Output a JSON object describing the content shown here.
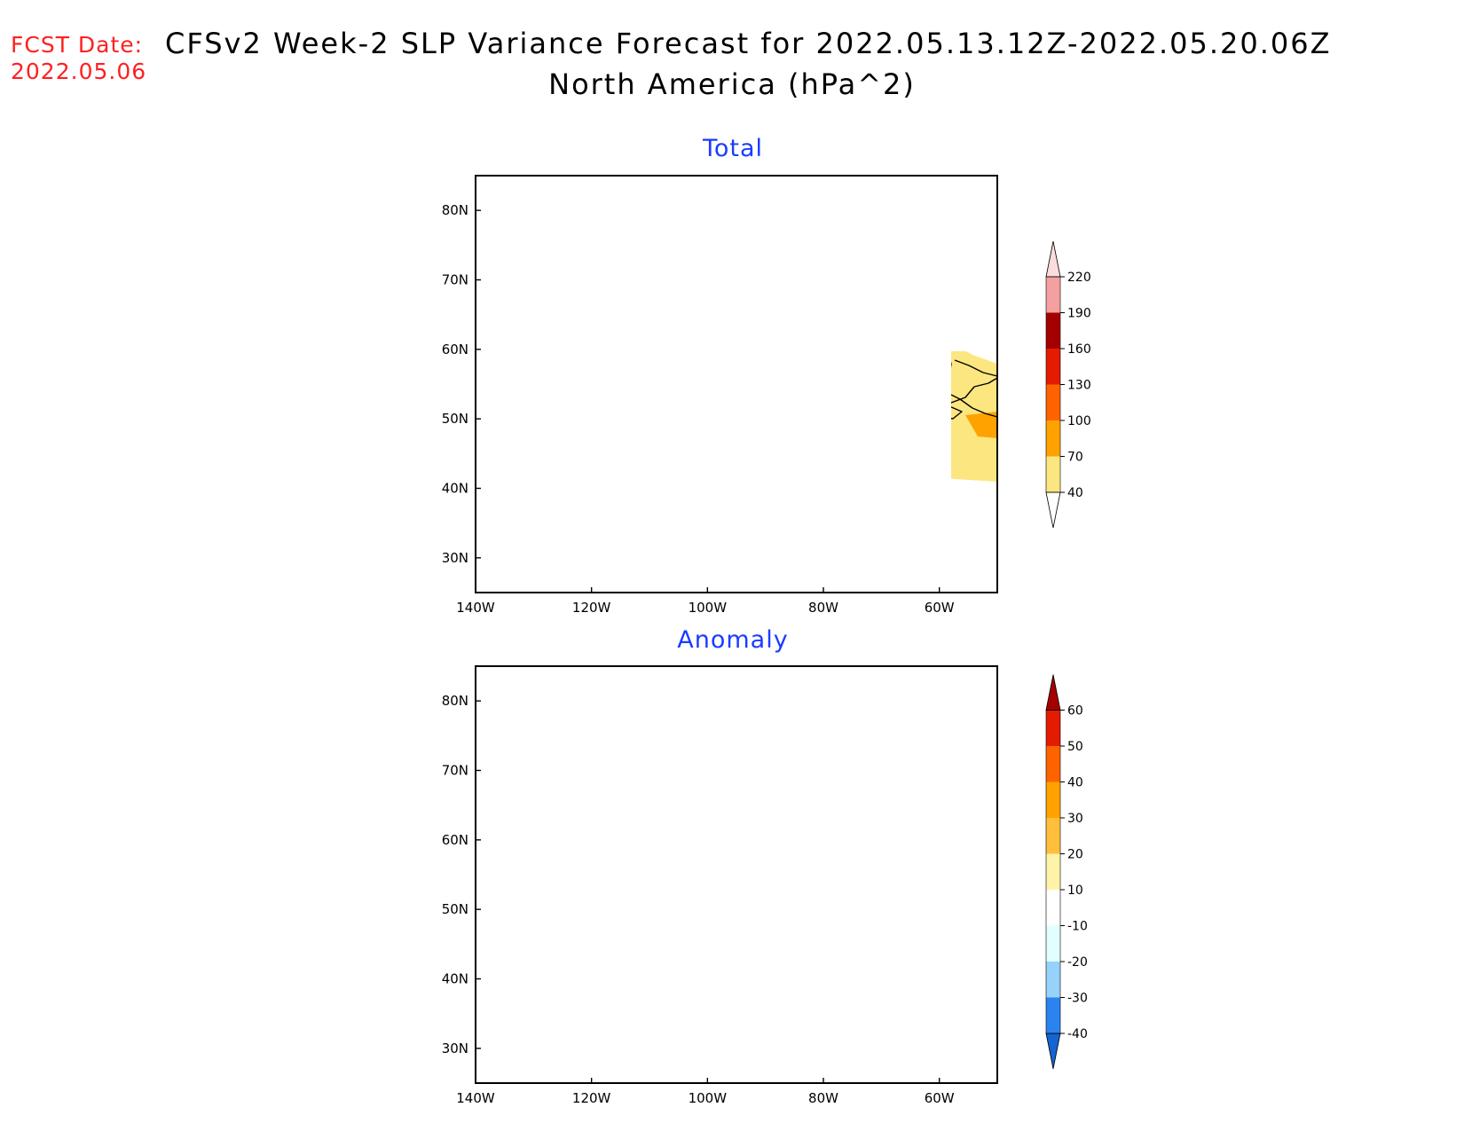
{
  "header": {
    "fcst_label": "FCST Date:",
    "fcst_date": "2022.05.06",
    "title": "CFSv2 Week-2 SLP Variance Forecast for 2022.05.13.12Z-2022.05.20.06Z",
    "subtitle": "North America (hPa^2)"
  },
  "panels": [
    {
      "title": "Total",
      "colorbar": {
        "levels": [
          "40",
          "70",
          "100",
          "130",
          "160",
          "190",
          "220"
        ],
        "colors": [
          "#fce680",
          "#ffa200",
          "#ff6300",
          "#e31c00",
          "#a50000",
          "#f4a0a0",
          "#fcdcdc"
        ]
      }
    },
    {
      "title": "Anomaly",
      "colorbar": {
        "levels": [
          "-40",
          "-30",
          "-20",
          "-10",
          "10",
          "20",
          "30",
          "40",
          "50",
          "60"
        ],
        "colors": [
          "#1464d2",
          "#2b83f0",
          "#96d2fa",
          "#e1ffff",
          "#ffffff",
          "#fff3a8",
          "#ffbf3c",
          "#ffa200",
          "#ff6300",
          "#e31c00",
          "#a50000"
        ]
      }
    }
  ],
  "axes": {
    "lat_labels": [
      "30N",
      "40N",
      "50N",
      "60N",
      "70N",
      "80N"
    ],
    "lon_labels": [
      "140W",
      "120W",
      "100W",
      "80W",
      "60W"
    ]
  }
}
